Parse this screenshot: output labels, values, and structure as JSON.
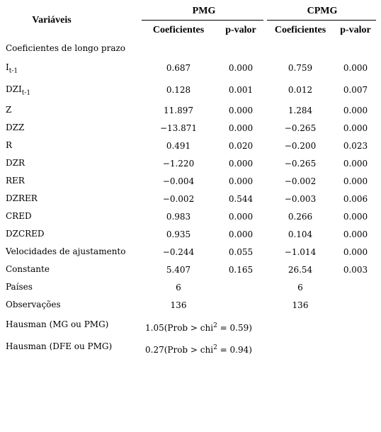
{
  "header": {
    "variables": "Variáveis",
    "groups": [
      "PMG",
      "CPMG"
    ],
    "columns": [
      "Coeficientes",
      "p-valor",
      "Coeficientes",
      "p-valor"
    ]
  },
  "section": "Coeficientes de longo prazo",
  "rows": [
    {
      "label": {
        "text": "I",
        "sub": "t-1"
      },
      "cells": [
        "0.687",
        "0.000",
        "0.759",
        "0.000"
      ]
    },
    {
      "label": {
        "text": "DZI",
        "sub": "t-1"
      },
      "cells": [
        "0.128",
        "0.001",
        "0.012",
        "0.007"
      ]
    },
    {
      "label": {
        "text": "Z"
      },
      "cells": [
        "11.897",
        "0.000",
        "1.284",
        "0.000"
      ]
    },
    {
      "label": {
        "text": "DZZ"
      },
      "cells": [
        "−13.871",
        "0.000",
        "−0.265",
        "0.000"
      ]
    },
    {
      "label": {
        "text": "R"
      },
      "cells": [
        "0.491",
        "0.020",
        "−0.200",
        "0.023"
      ]
    },
    {
      "label": {
        "text": "DZR"
      },
      "cells": [
        "−1.220",
        "0.000",
        "−0.265",
        "0.000"
      ]
    },
    {
      "label": {
        "text": "RER"
      },
      "cells": [
        "−0.004",
        "0.000",
        "−0.002",
        "0.000"
      ]
    },
    {
      "label": {
        "text": "DZRER"
      },
      "cells": [
        "−0.002",
        "0.544",
        "−0.003",
        "0.006"
      ]
    },
    {
      "label": {
        "text": "CRED"
      },
      "cells": [
        "0.983",
        "0.000",
        "0.266",
        "0.000"
      ]
    },
    {
      "label": {
        "text": "DZCRED"
      },
      "cells": [
        "0.935",
        "0.000",
        "0.104",
        "0.000"
      ]
    },
    {
      "label": {
        "text": "Velocidades de ajustamento"
      },
      "cells": [
        "−0.244",
        "0.055",
        "−1.014",
        "0.000"
      ]
    },
    {
      "label": {
        "text": "Constante"
      },
      "cells": [
        "5.407",
        "0.165",
        "26.54",
        "0.003"
      ]
    },
    {
      "label": {
        "text": "Países"
      },
      "cells": [
        "6",
        null,
        "6",
        null
      ]
    },
    {
      "label": {
        "text": "Observações"
      },
      "cells": [
        "136",
        null,
        "136",
        null
      ]
    }
  ],
  "hausman": [
    {
      "label": "Hausman (MG ou PMG)",
      "value": "1.05",
      "text": "(Prob > chi",
      "sup": "2",
      "rest": " = 0.59)"
    },
    {
      "label": "Hausman (DFE ou PMG)",
      "value": "0.27",
      "text": "(Prob > chi",
      "sup": "2",
      "rest": " = 0.94)"
    }
  ]
}
